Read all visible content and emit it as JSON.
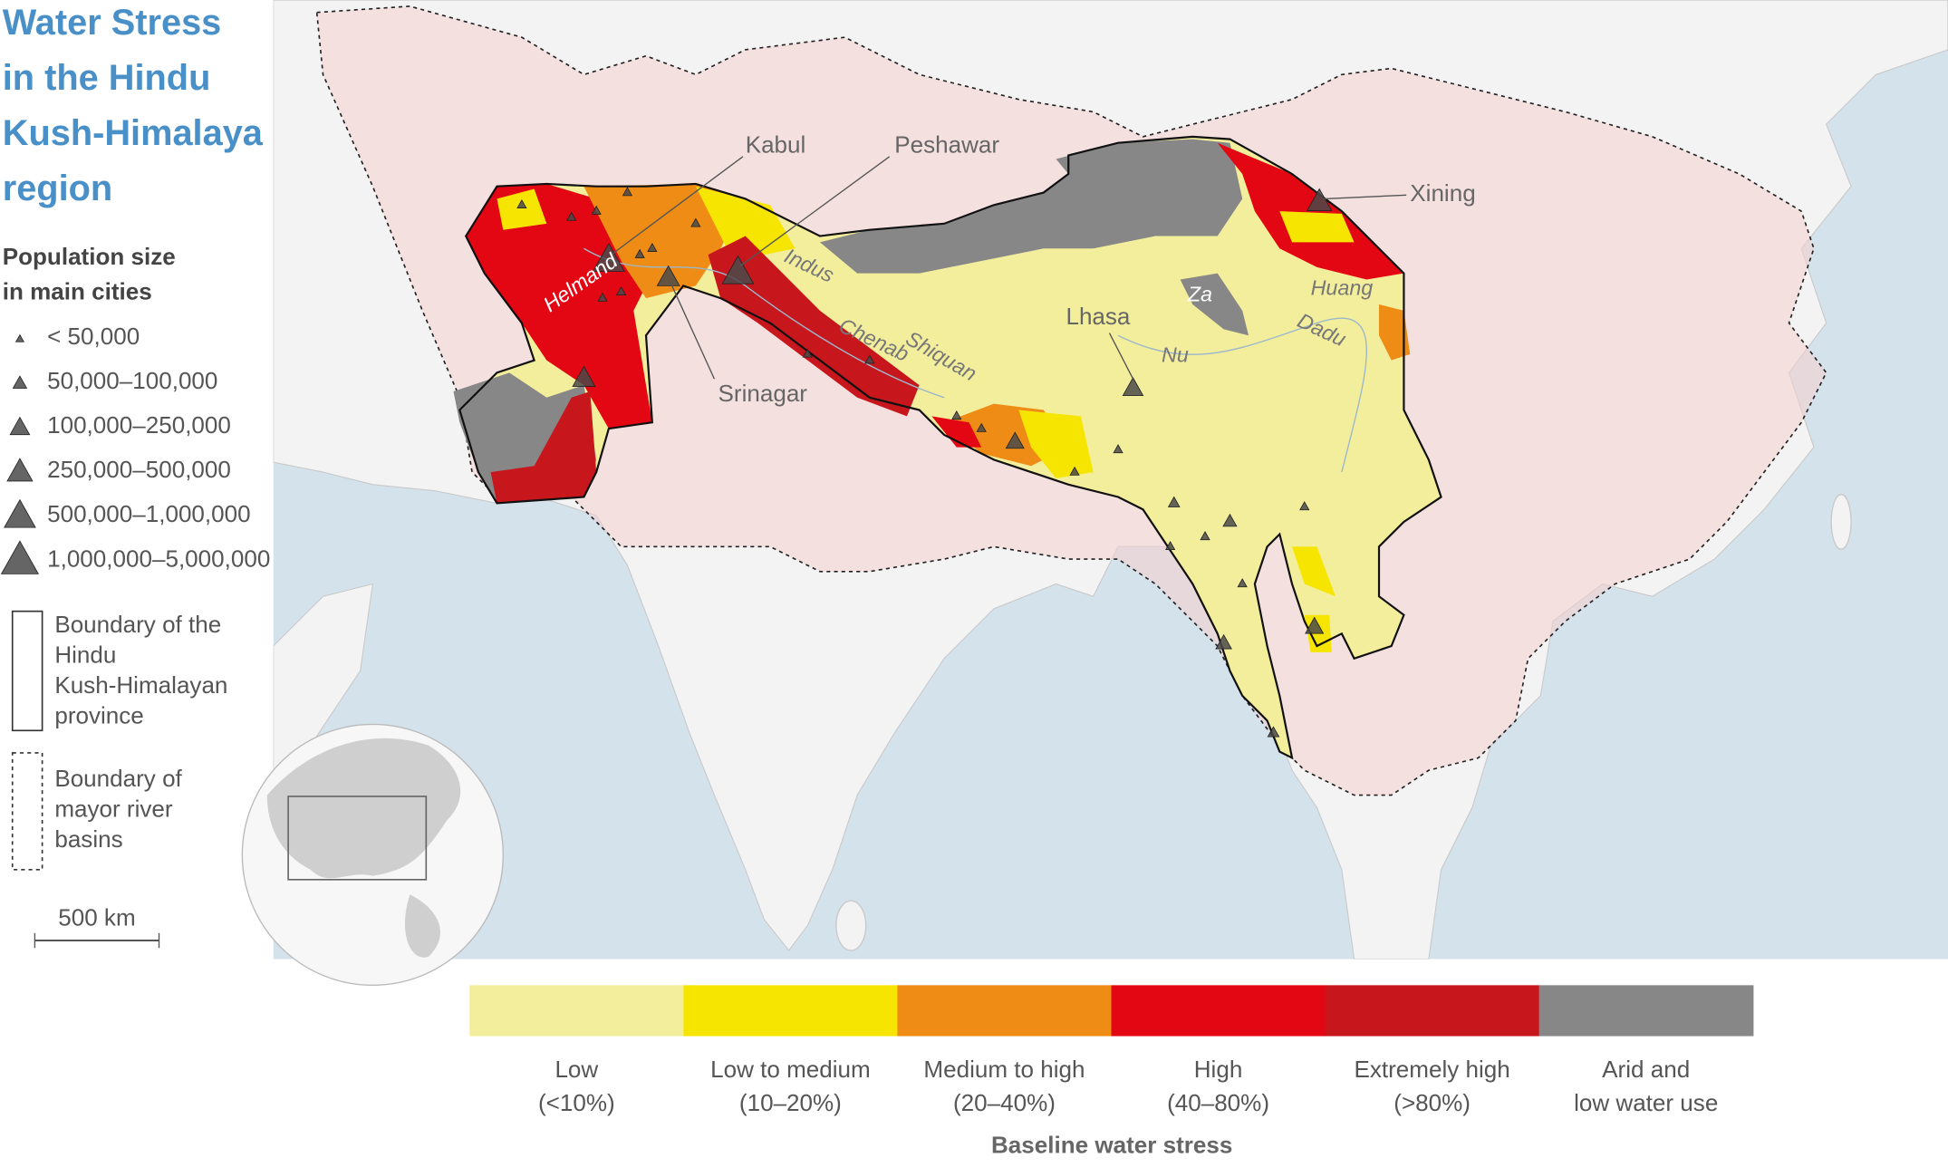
{
  "title": [
    "Water Stress",
    "in the Hindu",
    "Kush-Himalaya",
    "region"
  ],
  "population_legend": {
    "title": [
      "Population size",
      "in main cities"
    ],
    "items": [
      "< 50,000",
      "50,000–100,000",
      "100,000–250,000",
      "250,000–500,000",
      "500,000–1,000,000",
      "1,000,000–5,000,000"
    ]
  },
  "boundary_legend": [
    {
      "label": [
        "Boundary of the",
        "Hindu",
        "Kush-Himalayan",
        "province"
      ]
    },
    {
      "label": [
        "Boundary of",
        "mayor river",
        "basins"
      ]
    }
  ],
  "scale_bar": "500 km",
  "cities": [
    "Kabul",
    "Peshawar",
    "Srinagar",
    "Lhasa",
    "Xining"
  ],
  "rivers": [
    "Helmand",
    "Indus",
    "Chenab",
    "Shiquan",
    "Huang",
    "Dadu",
    "Nu",
    "Za"
  ],
  "water_stress_legend": {
    "title": "Baseline water stress",
    "classes": [
      {
        "label": [
          "Low",
          "(<10%)"
        ],
        "color": "#f3ee9c"
      },
      {
        "label": [
          "Low to medium",
          "(10–20%)"
        ],
        "color": "#f6e500"
      },
      {
        "label": [
          "Medium to high",
          "(20–40%)"
        ],
        "color": "#ee8c16"
      },
      {
        "label": [
          "High",
          "(40–80%)"
        ],
        "color": "#e30613"
      },
      {
        "label": [
          "Extremely high",
          "(>80%)"
        ],
        "color": "#c8161d"
      },
      {
        "label": [
          "Arid and",
          "low water use"
        ],
        "color": "#878787"
      }
    ]
  }
}
